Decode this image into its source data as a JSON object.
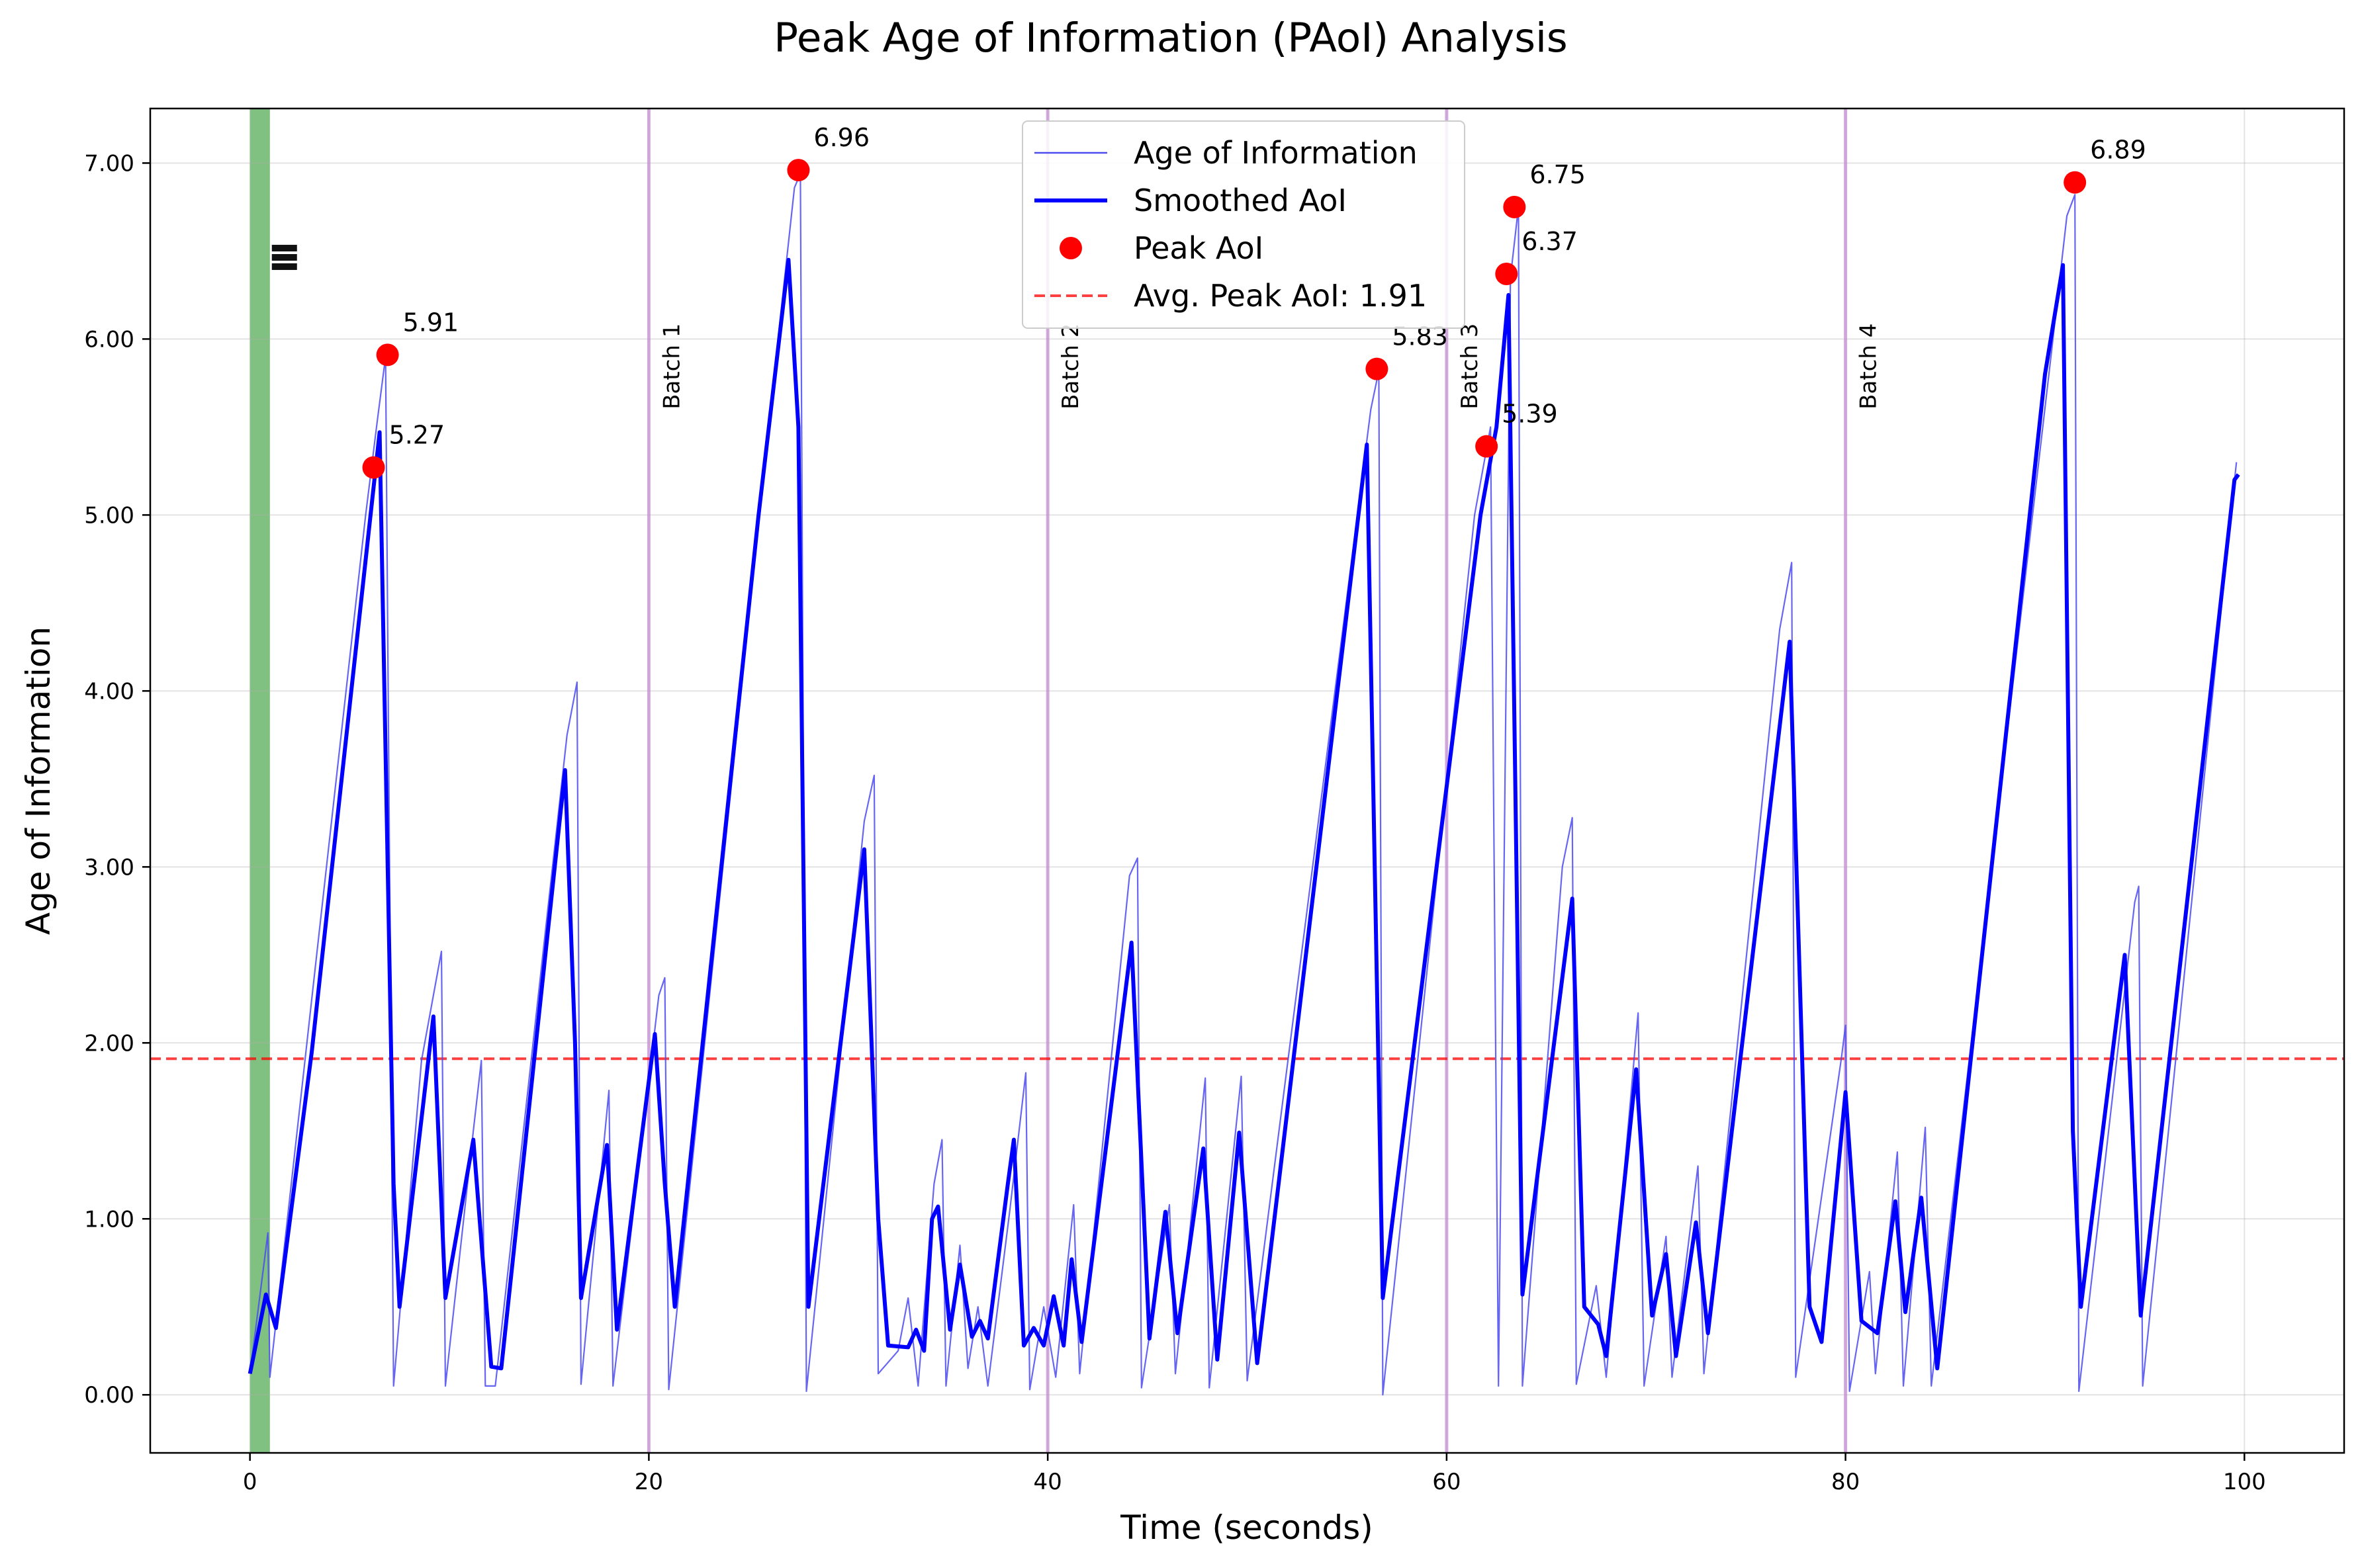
{
  "chart_data": {
    "type": "line",
    "title": "Peak Age of Information (PAoI) Analysis",
    "xlabel": "Time (seconds)",
    "ylabel": "Age of Information",
    "xlim": [
      -5,
      105
    ],
    "ylim": [
      -0.33,
      7.31
    ],
    "x_ticks": [
      0,
      20,
      40,
      60,
      80,
      100
    ],
    "x_tick_labels": [
      "0",
      "20",
      "40",
      "60",
      "80",
      "100"
    ],
    "y_ticks": [
      0,
      1,
      2,
      3,
      4,
      5,
      6,
      7
    ],
    "y_tick_labels": [
      "0.00",
      "1.00",
      "2.00",
      "3.00",
      "4.00",
      "5.00",
      "6.00",
      "7.00"
    ],
    "grid": true,
    "legend_position": "top-center",
    "colors": {
      "raw": "#4b4bf0",
      "smoothed": "#0000ff",
      "peak": "#ff0000",
      "average": "#ff0000",
      "batch_line": "#c58fd3",
      "start_band": "#3c9e3c"
    },
    "series": [
      {
        "name": "Age of Information",
        "style": "thin-line",
        "points": [
          [
            0.0,
            0.12
          ],
          [
            0.9,
            0.92
          ],
          [
            1.0,
            0.1
          ],
          [
            3.1,
            2.25
          ],
          [
            5.8,
            5.0
          ],
          [
            6.4,
            5.55
          ],
          [
            6.8,
            5.9
          ],
          [
            7.2,
            0.05
          ],
          [
            8.6,
            1.9
          ],
          [
            9.6,
            2.52
          ],
          [
            9.8,
            0.05
          ],
          [
            11.2,
            1.5
          ],
          [
            11.6,
            1.9
          ],
          [
            11.8,
            0.05
          ],
          [
            12.3,
            0.05
          ],
          [
            15.9,
            3.75
          ],
          [
            16.4,
            4.05
          ],
          [
            16.6,
            0.06
          ],
          [
            18.0,
            1.73
          ],
          [
            18.2,
            0.05
          ],
          [
            20.5,
            2.27
          ],
          [
            20.8,
            2.37
          ],
          [
            21.0,
            0.03
          ],
          [
            26.0,
            5.5
          ],
          [
            27.3,
            6.86
          ],
          [
            27.6,
            6.94
          ],
          [
            27.9,
            0.02
          ],
          [
            30.8,
            3.26
          ],
          [
            31.3,
            3.52
          ],
          [
            31.5,
            0.12
          ],
          [
            32.5,
            0.25
          ],
          [
            33.0,
            0.55
          ],
          [
            33.5,
            0.05
          ],
          [
            34.3,
            1.2
          ],
          [
            34.7,
            1.45
          ],
          [
            34.9,
            0.05
          ],
          [
            35.6,
            0.85
          ],
          [
            36.0,
            0.15
          ],
          [
            36.5,
            0.5
          ],
          [
            37.0,
            0.05
          ],
          [
            38.1,
            1.05
          ],
          [
            38.9,
            1.83
          ],
          [
            39.1,
            0.03
          ],
          [
            39.8,
            0.5
          ],
          [
            40.4,
            0.1
          ],
          [
            41.3,
            1.08
          ],
          [
            41.6,
            0.12
          ],
          [
            44.1,
            2.95
          ],
          [
            44.5,
            3.05
          ],
          [
            44.7,
            0.04
          ],
          [
            46.1,
            1.08
          ],
          [
            46.4,
            0.12
          ],
          [
            47.9,
            1.8
          ],
          [
            48.1,
            0.04
          ],
          [
            49.7,
            1.81
          ],
          [
            50.0,
            0.08
          ],
          [
            56.2,
            5.6
          ],
          [
            56.6,
            5.82
          ],
          [
            56.8,
            0.0
          ],
          [
            61.4,
            5.0
          ],
          [
            62.2,
            5.5
          ],
          [
            62.6,
            0.05
          ],
          [
            63.2,
            6.35
          ],
          [
            63.6,
            6.75
          ],
          [
            63.8,
            0.05
          ],
          [
            65.8,
            3.0
          ],
          [
            66.3,
            3.28
          ],
          [
            66.5,
            0.06
          ],
          [
            67.5,
            0.62
          ],
          [
            68.0,
            0.1
          ],
          [
            69.6,
            2.17
          ],
          [
            69.9,
            0.05
          ],
          [
            71.0,
            0.9
          ],
          [
            71.3,
            0.1
          ],
          [
            72.6,
            1.3
          ],
          [
            72.9,
            0.12
          ],
          [
            76.7,
            4.35
          ],
          [
            77.3,
            4.73
          ],
          [
            77.5,
            0.1
          ],
          [
            79.8,
            1.92
          ],
          [
            80.0,
            2.1
          ],
          [
            80.2,
            0.02
          ],
          [
            81.2,
            0.7
          ],
          [
            81.5,
            0.12
          ],
          [
            82.6,
            1.38
          ],
          [
            82.9,
            0.05
          ],
          [
            84.0,
            1.52
          ],
          [
            84.3,
            0.05
          ],
          [
            90.3,
            5.9
          ],
          [
            91.1,
            6.7
          ],
          [
            91.5,
            6.82
          ],
          [
            91.7,
            0.02
          ],
          [
            94.5,
            2.8
          ],
          [
            94.7,
            2.89
          ],
          [
            94.9,
            0.05
          ],
          [
            99.3,
            4.98
          ],
          [
            99.6,
            5.3
          ]
        ]
      },
      {
        "name": "Smoothed AoI",
        "style": "thick-line",
        "points": [
          [
            0.0,
            0.12
          ],
          [
            0.8,
            0.57
          ],
          [
            1.3,
            0.38
          ],
          [
            3.1,
            1.95
          ],
          [
            6.5,
            5.47
          ],
          [
            7.2,
            1.2
          ],
          [
            7.5,
            0.5
          ],
          [
            9.2,
            2.15
          ],
          [
            9.8,
            0.55
          ],
          [
            10.5,
            1.0
          ],
          [
            11.2,
            1.45
          ],
          [
            12.1,
            0.16
          ],
          [
            12.6,
            0.15
          ],
          [
            15.8,
            3.55
          ],
          [
            16.3,
            2.0
          ],
          [
            16.6,
            0.55
          ],
          [
            17.9,
            1.42
          ],
          [
            18.4,
            0.37
          ],
          [
            20.3,
            2.05
          ],
          [
            20.8,
            1.2
          ],
          [
            21.3,
            0.5
          ],
          [
            25.5,
            5.0
          ],
          [
            27.0,
            6.45
          ],
          [
            27.5,
            5.5
          ],
          [
            28.0,
            0.5
          ],
          [
            30.8,
            3.1
          ],
          [
            31.5,
            1.0
          ],
          [
            32.0,
            0.28
          ],
          [
            33.0,
            0.27
          ],
          [
            33.4,
            0.37
          ],
          [
            33.8,
            0.25
          ],
          [
            34.2,
            1.0
          ],
          [
            34.5,
            1.07
          ],
          [
            35.1,
            0.37
          ],
          [
            35.6,
            0.74
          ],
          [
            36.2,
            0.33
          ],
          [
            36.6,
            0.42
          ],
          [
            37.0,
            0.32
          ],
          [
            38.0,
            1.2
          ],
          [
            38.3,
            1.45
          ],
          [
            38.8,
            0.28
          ],
          [
            39.3,
            0.38
          ],
          [
            39.8,
            0.28
          ],
          [
            40.3,
            0.56
          ],
          [
            40.8,
            0.28
          ],
          [
            41.2,
            0.77
          ],
          [
            41.7,
            0.3
          ],
          [
            44.2,
            2.57
          ],
          [
            45.1,
            0.32
          ],
          [
            45.9,
            1.04
          ],
          [
            46.5,
            0.35
          ],
          [
            47.8,
            1.4
          ],
          [
            48.5,
            0.2
          ],
          [
            49.6,
            1.49
          ],
          [
            50.5,
            0.18
          ],
          [
            56.0,
            5.4
          ],
          [
            56.8,
            0.55
          ],
          [
            61.7,
            5.0
          ],
          [
            62.5,
            5.5
          ],
          [
            63.1,
            6.25
          ],
          [
            63.8,
            0.57
          ],
          [
            66.3,
            2.82
          ],
          [
            66.9,
            0.5
          ],
          [
            67.6,
            0.4
          ],
          [
            68.0,
            0.22
          ],
          [
            69.5,
            1.85
          ],
          [
            70.3,
            0.45
          ],
          [
            71.0,
            0.8
          ],
          [
            71.5,
            0.22
          ],
          [
            72.5,
            0.98
          ],
          [
            73.1,
            0.35
          ],
          [
            77.2,
            4.28
          ],
          [
            78.2,
            0.5
          ],
          [
            78.8,
            0.3
          ],
          [
            80.0,
            1.72
          ],
          [
            80.8,
            0.42
          ],
          [
            81.6,
            0.35
          ],
          [
            82.5,
            1.1
          ],
          [
            83.0,
            0.47
          ],
          [
            83.8,
            1.12
          ],
          [
            84.6,
            0.15
          ],
          [
            90.0,
            5.8
          ],
          [
            90.9,
            6.42
          ],
          [
            91.4,
            1.5
          ],
          [
            91.8,
            0.5
          ],
          [
            94.0,
            2.5
          ],
          [
            94.8,
            0.45
          ],
          [
            99.5,
            5.2
          ],
          [
            99.7,
            5.23
          ]
        ]
      }
    ],
    "peaks": {
      "name": "Peak AoI",
      "points": [
        [
          6.2,
          5.27
        ],
        [
          6.9,
          5.91
        ],
        [
          27.5,
          6.96
        ],
        [
          56.5,
          5.83
        ],
        [
          62.0,
          5.39
        ],
        [
          63.0,
          6.37
        ],
        [
          63.4,
          6.75
        ],
        [
          91.5,
          6.89
        ]
      ],
      "labels": [
        "5.27",
        "5.91",
        "6.96",
        "5.83",
        "5.39",
        "6.37",
        "6.75",
        "6.89"
      ]
    },
    "average_line": {
      "label": "Avg. Peak AoI: 1.91",
      "value": 1.91
    },
    "batch_lines": [
      {
        "x": 20,
        "label": "Batch 1"
      },
      {
        "x": 40,
        "label": "Batch 2"
      },
      {
        "x": 60,
        "label": "Batch 3"
      },
      {
        "x": 80,
        "label": "Batch 4"
      }
    ],
    "start_band": {
      "x0": 0,
      "x1": 1
    },
    "legend": [
      "Age of Information",
      "Smoothed AoI",
      "Peak AoI",
      "Avg. Peak AoI: 1.91"
    ]
  }
}
